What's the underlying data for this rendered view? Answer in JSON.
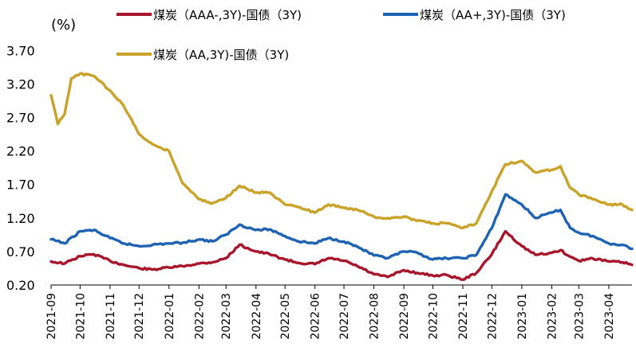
{
  "chart_data": {
    "type": "line",
    "yunit": "(%)",
    "ylim": [
      0.2,
      4.0
    ],
    "yticks": [
      0.2,
      0.7,
      1.2,
      1.7,
      2.2,
      2.7,
      3.2,
      3.7
    ],
    "ytick_labels": [
      "0.20",
      "0.70",
      "1.20",
      "1.70",
      "2.20",
      "2.70",
      "3.20",
      "3.70"
    ],
    "x_start": "2021-09-01",
    "x_end": "2023-04-25",
    "xtick_labels": [
      "2021-09",
      "2021-10",
      "2021-11",
      "2021-12",
      "2022-01",
      "2022-02",
      "2022-03",
      "2022-04",
      "2022-05",
      "2022-06",
      "2022-07",
      "2022-08",
      "2022-09",
      "2022-10",
      "2022-11",
      "2022-12",
      "2023-01",
      "2023-02",
      "2023-03",
      "2023-04"
    ],
    "grid": false,
    "legend_position": "top",
    "series": [
      {
        "name": "煤炭（AAA-,3Y)-国债（3Y)",
        "color": "#A9152B",
        "points": [
          [
            "2021-09-01",
            0.55
          ],
          [
            "2021-09-15",
            0.52
          ],
          [
            "2021-10-01",
            0.63
          ],
          [
            "2021-10-15",
            0.66
          ],
          [
            "2021-11-01",
            0.56
          ],
          [
            "2021-11-15",
            0.5
          ],
          [
            "2021-12-01",
            0.45
          ],
          [
            "2021-12-15",
            0.43
          ],
          [
            "2022-01-01",
            0.46
          ],
          [
            "2022-01-15",
            0.48
          ],
          [
            "2022-02-01",
            0.52
          ],
          [
            "2022-02-15",
            0.54
          ],
          [
            "2022-03-01",
            0.6
          ],
          [
            "2022-03-15",
            0.8
          ],
          [
            "2022-04-01",
            0.7
          ],
          [
            "2022-04-15",
            0.66
          ],
          [
            "2022-05-01",
            0.58
          ],
          [
            "2022-05-15",
            0.53
          ],
          [
            "2022-06-01",
            0.51
          ],
          [
            "2022-06-15",
            0.6
          ],
          [
            "2022-07-01",
            0.56
          ],
          [
            "2022-07-15",
            0.48
          ],
          [
            "2022-08-01",
            0.36
          ],
          [
            "2022-08-15",
            0.32
          ],
          [
            "2022-09-01",
            0.42
          ],
          [
            "2022-09-15",
            0.38
          ],
          [
            "2022-10-01",
            0.34
          ],
          [
            "2022-10-15",
            0.35
          ],
          [
            "2022-11-01",
            0.28
          ],
          [
            "2022-11-15",
            0.38
          ],
          [
            "2022-12-01",
            0.66
          ],
          [
            "2022-12-15",
            1.0
          ],
          [
            "2023-01-01",
            0.78
          ],
          [
            "2023-01-15",
            0.65
          ],
          [
            "2023-02-01",
            0.68
          ],
          [
            "2023-02-10",
            0.72
          ],
          [
            "2023-02-20",
            0.62
          ],
          [
            "2023-03-01",
            0.56
          ],
          [
            "2023-03-15",
            0.6
          ],
          [
            "2023-04-01",
            0.55
          ],
          [
            "2023-04-15",
            0.54
          ],
          [
            "2023-04-25",
            0.5
          ]
        ]
      },
      {
        "name": "煤炭（AA+,3Y)-国债（3Y)",
        "color": "#1E63B3",
        "points": [
          [
            "2021-09-01",
            0.88
          ],
          [
            "2021-09-15",
            0.82
          ],
          [
            "2021-10-01",
            1.0
          ],
          [
            "2021-10-15",
            1.02
          ],
          [
            "2021-11-01",
            0.9
          ],
          [
            "2021-11-15",
            0.82
          ],
          [
            "2021-12-01",
            0.78
          ],
          [
            "2021-12-15",
            0.8
          ],
          [
            "2022-01-01",
            0.82
          ],
          [
            "2022-01-15",
            0.83
          ],
          [
            "2022-02-01",
            0.88
          ],
          [
            "2022-02-15",
            0.85
          ],
          [
            "2022-03-01",
            0.95
          ],
          [
            "2022-03-15",
            1.1
          ],
          [
            "2022-04-01",
            1.02
          ],
          [
            "2022-04-15",
            1.03
          ],
          [
            "2022-05-01",
            0.93
          ],
          [
            "2022-05-15",
            0.85
          ],
          [
            "2022-06-01",
            0.82
          ],
          [
            "2022-06-15",
            0.9
          ],
          [
            "2022-07-01",
            0.85
          ],
          [
            "2022-07-15",
            0.77
          ],
          [
            "2022-08-01",
            0.64
          ],
          [
            "2022-08-15",
            0.6
          ],
          [
            "2022-09-01",
            0.7
          ],
          [
            "2022-09-15",
            0.68
          ],
          [
            "2022-10-01",
            0.58
          ],
          [
            "2022-10-15",
            0.6
          ],
          [
            "2022-11-01",
            0.6
          ],
          [
            "2022-11-15",
            0.65
          ],
          [
            "2022-12-01",
            1.05
          ],
          [
            "2022-12-15",
            1.55
          ],
          [
            "2023-01-01",
            1.4
          ],
          [
            "2023-01-15",
            1.2
          ],
          [
            "2023-02-01",
            1.28
          ],
          [
            "2023-02-10",
            1.32
          ],
          [
            "2023-02-20",
            1.05
          ],
          [
            "2023-03-01",
            0.98
          ],
          [
            "2023-03-15",
            0.93
          ],
          [
            "2023-04-01",
            0.82
          ],
          [
            "2023-04-15",
            0.8
          ],
          [
            "2023-04-25",
            0.74
          ]
        ]
      },
      {
        "name": "煤炭（AA,3Y)-国债（3Y)",
        "color": "#C9A227",
        "points": [
          [
            "2021-09-01",
            3.03
          ],
          [
            "2021-09-08",
            2.6
          ],
          [
            "2021-09-15",
            2.75
          ],
          [
            "2021-09-22",
            3.28
          ],
          [
            "2021-10-01",
            3.35
          ],
          [
            "2021-10-15",
            3.32
          ],
          [
            "2021-11-01",
            3.1
          ],
          [
            "2021-11-15",
            2.88
          ],
          [
            "2021-12-01",
            2.45
          ],
          [
            "2021-12-15",
            2.3
          ],
          [
            "2022-01-01",
            2.2
          ],
          [
            "2022-01-15",
            1.72
          ],
          [
            "2022-02-01",
            1.48
          ],
          [
            "2022-02-15",
            1.42
          ],
          [
            "2022-03-01",
            1.5
          ],
          [
            "2022-03-15",
            1.68
          ],
          [
            "2022-04-01",
            1.58
          ],
          [
            "2022-04-15",
            1.58
          ],
          [
            "2022-05-01",
            1.4
          ],
          [
            "2022-05-15",
            1.36
          ],
          [
            "2022-06-01",
            1.28
          ],
          [
            "2022-06-15",
            1.4
          ],
          [
            "2022-07-01",
            1.35
          ],
          [
            "2022-07-15",
            1.32
          ],
          [
            "2022-08-01",
            1.22
          ],
          [
            "2022-08-15",
            1.2
          ],
          [
            "2022-09-01",
            1.22
          ],
          [
            "2022-09-15",
            1.16
          ],
          [
            "2022-10-01",
            1.12
          ],
          [
            "2022-10-15",
            1.12
          ],
          [
            "2022-11-01",
            1.05
          ],
          [
            "2022-11-15",
            1.12
          ],
          [
            "2022-12-01",
            1.6
          ],
          [
            "2022-12-15",
            2.0
          ],
          [
            "2023-01-01",
            2.05
          ],
          [
            "2023-01-15",
            1.88
          ],
          [
            "2023-02-01",
            1.92
          ],
          [
            "2023-02-10",
            1.97
          ],
          [
            "2023-02-20",
            1.65
          ],
          [
            "2023-03-01",
            1.55
          ],
          [
            "2023-03-15",
            1.48
          ],
          [
            "2023-04-01",
            1.4
          ],
          [
            "2023-04-15",
            1.4
          ],
          [
            "2023-04-25",
            1.32
          ]
        ]
      }
    ]
  }
}
